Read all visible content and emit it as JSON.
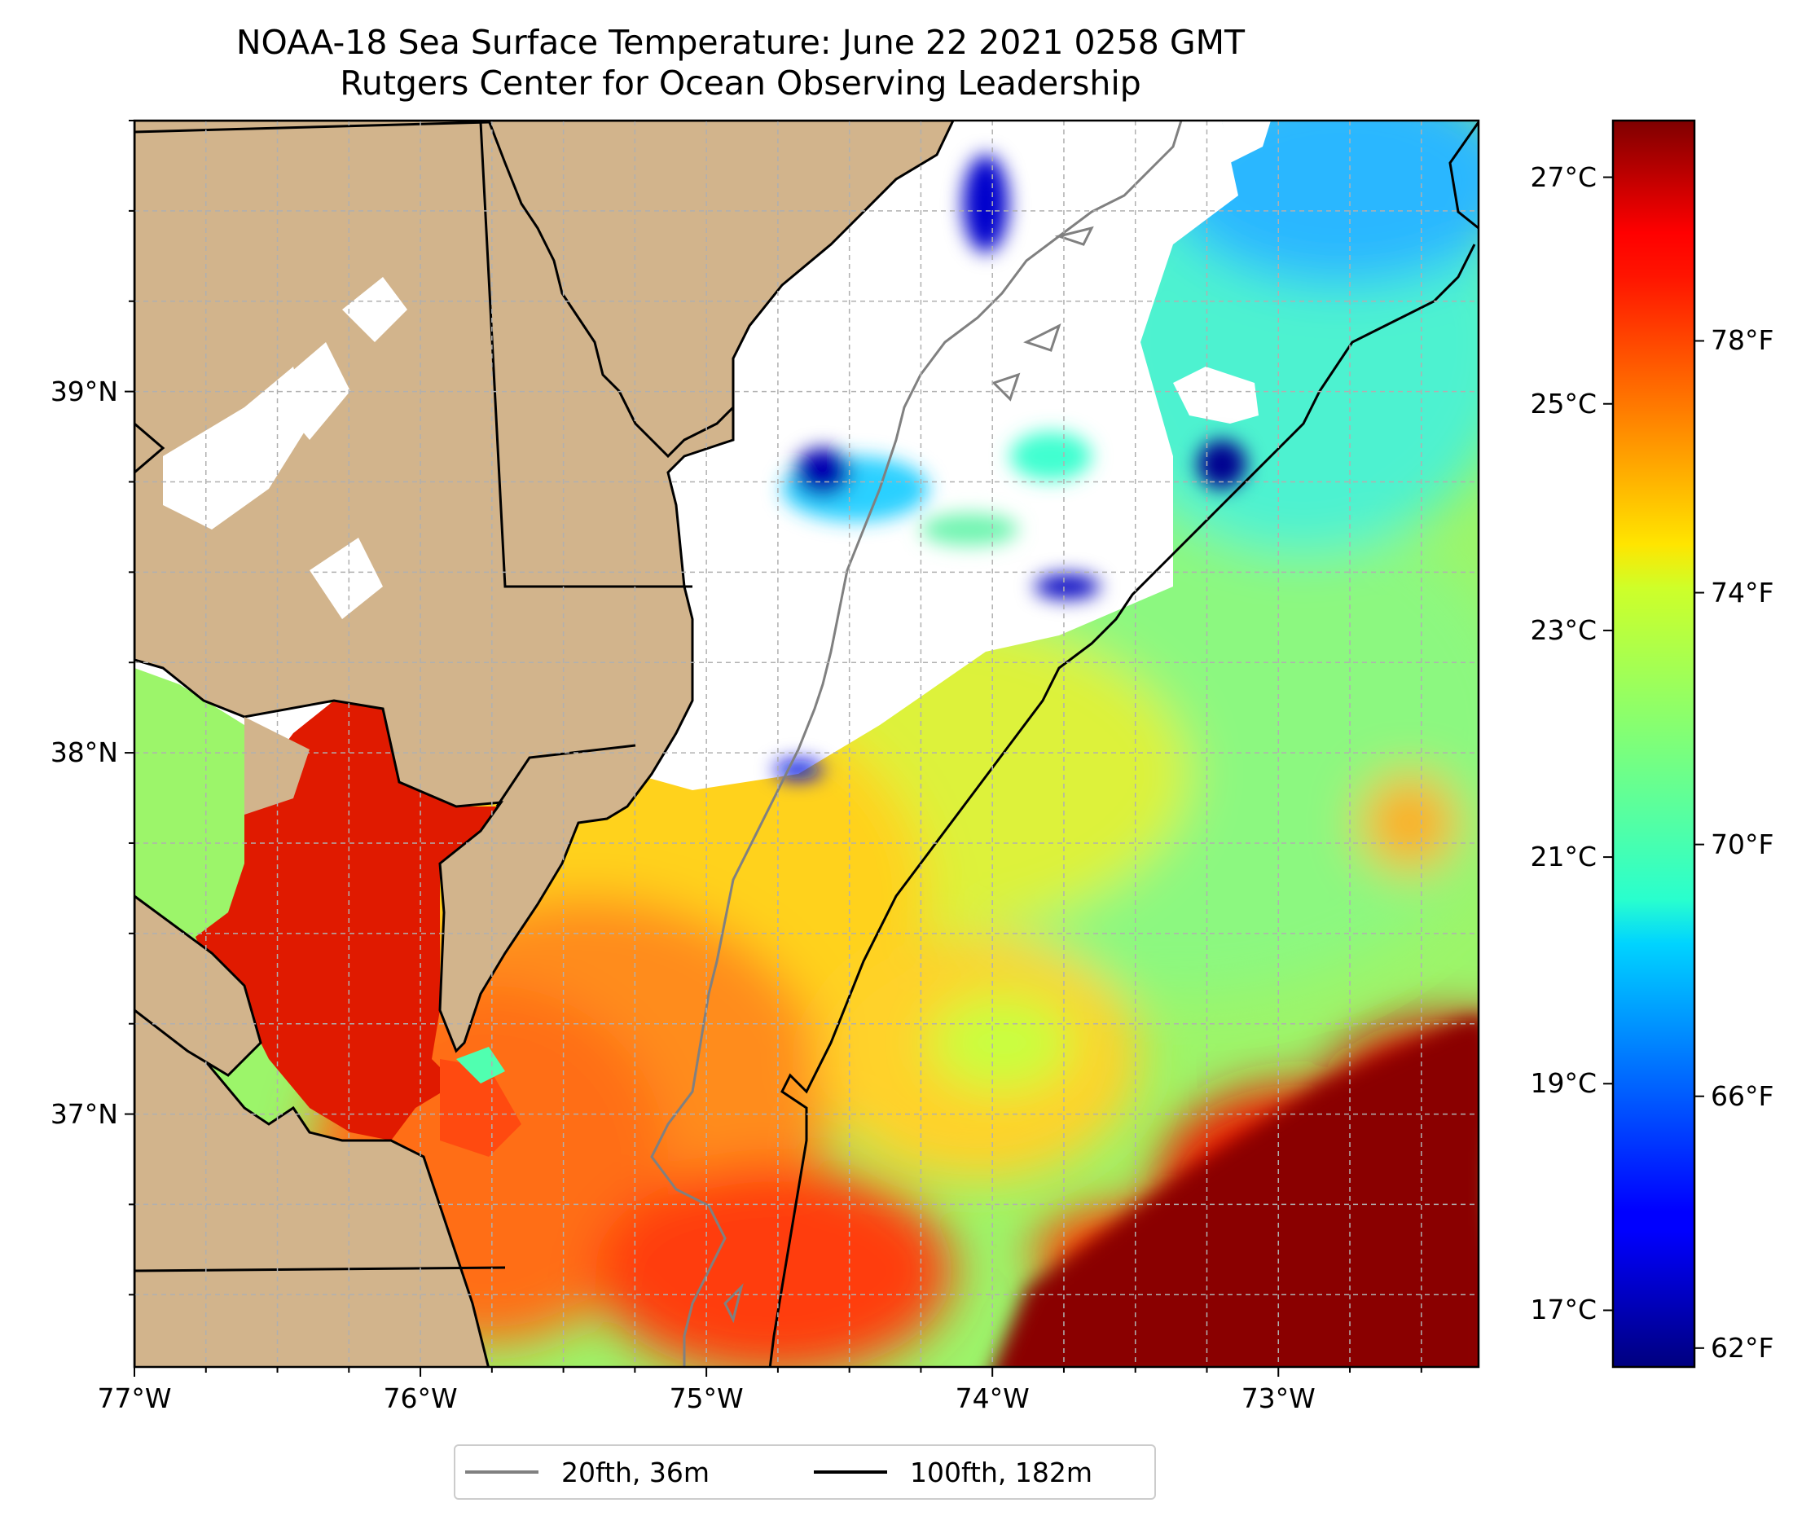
{
  "title": {
    "line1": "NOAA-18 Sea Surface Temperature: June 22 2021 0258 GMT",
    "line2": "Rutgers Center for Ocean Observing Leadership"
  },
  "map": {
    "lon_range": [
      -77.0,
      -72.3
    ],
    "lat_range": [
      36.3,
      39.75
    ],
    "x_ticks": [
      {
        "lon": -77,
        "label": "77°W"
      },
      {
        "lon": -76,
        "label": "76°W"
      },
      {
        "lon": -75,
        "label": "75°W"
      },
      {
        "lon": -74,
        "label": "74°W"
      },
      {
        "lon": -73,
        "label": "73°W"
      }
    ],
    "y_ticks": [
      {
        "lat": 39,
        "label": "39°N"
      },
      {
        "lat": 38,
        "label": "38°N"
      },
      {
        "lat": 37,
        "label": "37°N"
      }
    ],
    "gridlines": true,
    "colors": {
      "land": "#d2b48c",
      "no_data": "#ffffff",
      "isobath_20fth": "#808080",
      "isobath_100fth": "#000000"
    }
  },
  "colorbar": {
    "colormap": "jet",
    "range_c": [
      16.5,
      27.5
    ],
    "celsius_ticks": [
      {
        "value": 17,
        "label": "17°C"
      },
      {
        "value": 19,
        "label": "19°C"
      },
      {
        "value": 21,
        "label": "21°C"
      },
      {
        "value": 23,
        "label": "23°C"
      },
      {
        "value": 25,
        "label": "25°C"
      },
      {
        "value": 27,
        "label": "27°C"
      }
    ],
    "fahrenheit_ticks": [
      {
        "value": 62,
        "label": "62°F"
      },
      {
        "value": 66,
        "label": "66°F"
      },
      {
        "value": 70,
        "label": "70°F"
      },
      {
        "value": 74,
        "label": "74°F"
      },
      {
        "value": 78,
        "label": "78°F"
      }
    ]
  },
  "legend": {
    "placement": "bottom-center",
    "items": [
      {
        "label": "20fth, 36m",
        "color": "#808080"
      },
      {
        "label": "100fth, 182m",
        "color": "#000000"
      }
    ]
  }
}
